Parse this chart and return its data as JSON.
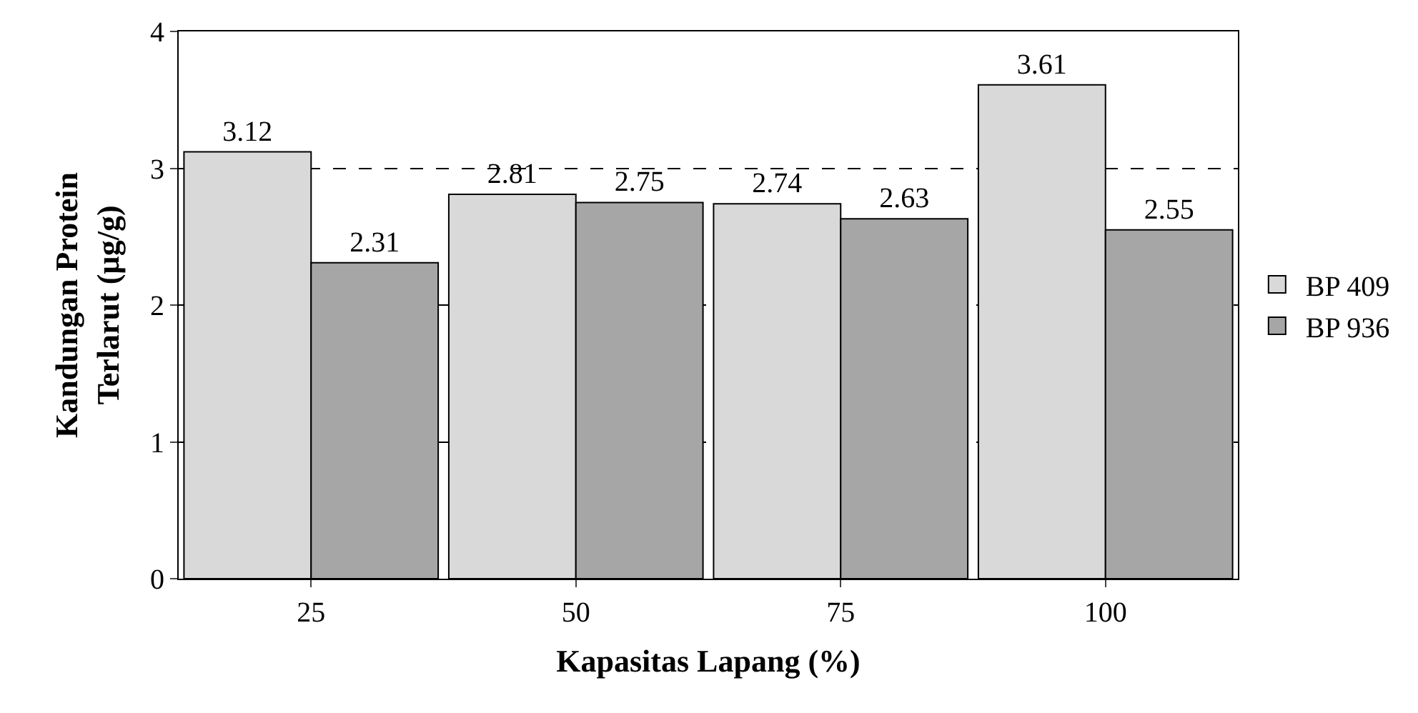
{
  "chart_data": {
    "type": "bar",
    "xlabel": "Kapasitas Lapang (%)",
    "ylabel": "Kandungan Protein\nTerlarut (µg/g)",
    "categories": [
      "25",
      "50",
      "75",
      "100"
    ],
    "series": [
      {
        "name": "BP 409",
        "color": "#d9d9d9",
        "values": [
          3.12,
          2.81,
          2.74,
          3.61
        ]
      },
      {
        "name": "BP 936",
        "color": "#a6a6a6",
        "values": [
          2.31,
          2.75,
          2.63,
          2.55
        ]
      }
    ],
    "ylim": [
      0,
      4
    ],
    "yticks": [
      0,
      1,
      2,
      3,
      4
    ],
    "grid": "y",
    "legend": "right",
    "data_labels": true
  }
}
